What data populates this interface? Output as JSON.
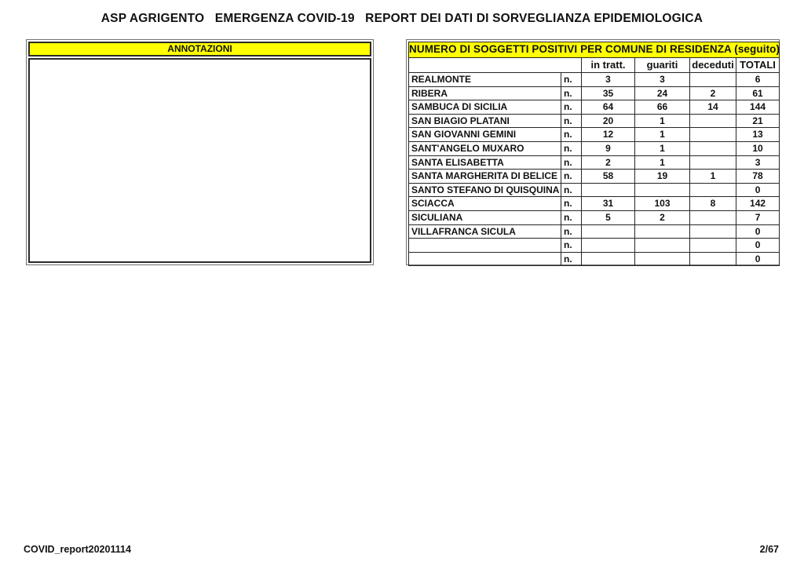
{
  "page": {
    "title": "ASP AGRIGENTO   EMERGENZA COVID-19   REPORT DEI DATI DI SORVEGLIANZA EPIDEMIOLOGICA",
    "footer_left": "COVID_report20201114",
    "footer_right": "2/67"
  },
  "annotations_box": {
    "header": "ANNOTAZIONI",
    "content": ""
  },
  "positives_table": {
    "title": "NUMERO DI SOGGETTI POSITIVI PER COMUNE DI RESIDENZA (seguito)",
    "columns": [
      "in tratt.",
      "guariti",
      "deceduti",
      "TOTALI"
    ],
    "rows": [
      {
        "comune": "REALMONTE",
        "n": "n.",
        "in_tratt": "3",
        "guariti": "3",
        "deceduti": "",
        "totali": "6"
      },
      {
        "comune": "RIBERA",
        "n": "n.",
        "in_tratt": "35",
        "guariti": "24",
        "deceduti": "2",
        "totali": "61"
      },
      {
        "comune": "SAMBUCA DI SICILIA",
        "n": "n.",
        "in_tratt": "64",
        "guariti": "66",
        "deceduti": "14",
        "totali": "144"
      },
      {
        "comune": "SAN BIAGIO PLATANI",
        "n": "n.",
        "in_tratt": "20",
        "guariti": "1",
        "deceduti": "",
        "totali": "21"
      },
      {
        "comune": "SAN GIOVANNI GEMINI",
        "n": "n.",
        "in_tratt": "12",
        "guariti": "1",
        "deceduti": "",
        "totali": "13"
      },
      {
        "comune": "SANT'ANGELO MUXARO",
        "n": "n.",
        "in_tratt": "9",
        "guariti": "1",
        "deceduti": "",
        "totali": "10"
      },
      {
        "comune": "SANTA ELISABETTA",
        "n": "n.",
        "in_tratt": "2",
        "guariti": "1",
        "deceduti": "",
        "totali": "3"
      },
      {
        "comune": "SANTA MARGHERITA DI BELICE",
        "n": "n.",
        "in_tratt": "58",
        "guariti": "19",
        "deceduti": "1",
        "totali": "78"
      },
      {
        "comune": "SANTO STEFANO DI QUISQUINA",
        "n": "n.",
        "in_tratt": "",
        "guariti": "",
        "deceduti": "",
        "totali": "0"
      },
      {
        "comune": "SCIACCA",
        "n": "n.",
        "in_tratt": "31",
        "guariti": "103",
        "deceduti": "8",
        "totali": "142"
      },
      {
        "comune": "SICULIANA",
        "n": "n.",
        "in_tratt": "5",
        "guariti": "2",
        "deceduti": "",
        "totali": "7"
      },
      {
        "comune": "VILLAFRANCA SICULA",
        "n": "n.",
        "in_tratt": "",
        "guariti": "",
        "deceduti": "",
        "totali": "0"
      },
      {
        "comune": "",
        "n": "n.",
        "in_tratt": "",
        "guariti": "",
        "deceduti": "",
        "totali": "0"
      },
      {
        "comune": "",
        "n": "n.",
        "in_tratt": "",
        "guariti": "",
        "deceduti": "",
        "totali": "0"
      }
    ]
  },
  "colors": {
    "header_yellow": "#ffff00",
    "border_dark": "#262626",
    "text": "#111111"
  }
}
